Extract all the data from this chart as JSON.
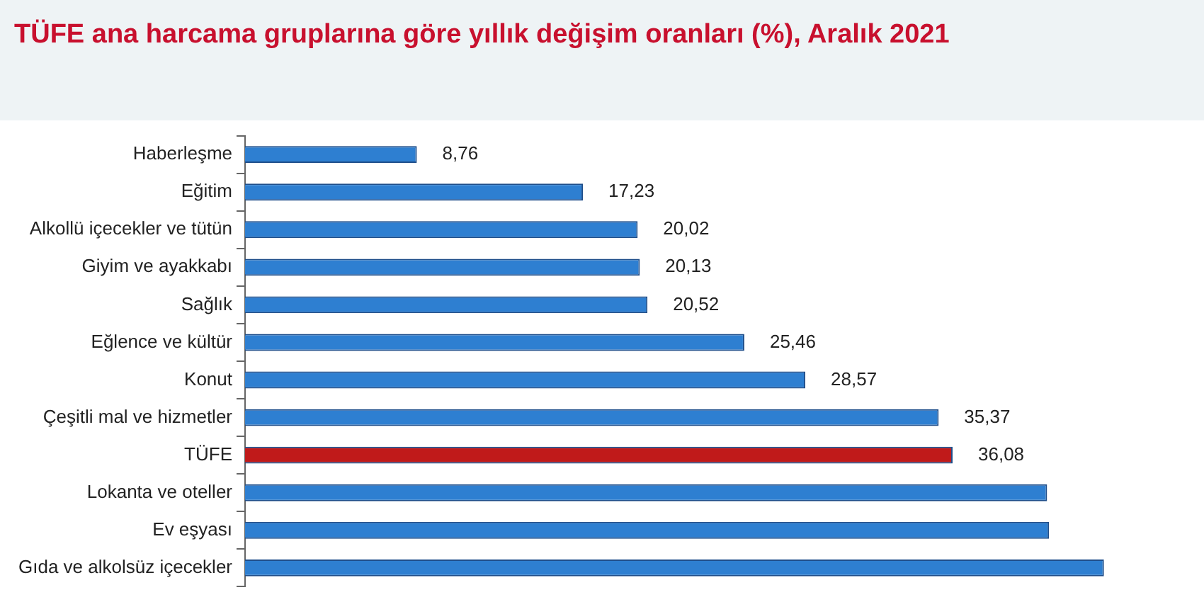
{
  "chart_data": {
    "type": "bar",
    "orientation": "horizontal",
    "title": "TÜFE ana harcama gruplarına göre yıllık değişim oranları (%), Aralık 2021",
    "categories": [
      "Haberleşme",
      "Eğitim",
      "Alkollü içecekler ve tütün",
      "Giyim ve ayakkabı",
      "Sağlık",
      "Eğlence ve kültür",
      "Konut",
      "Çeşitli mal ve hizmetler",
      "TÜFE",
      "Lokanta ve oteller",
      "Ev eşyası",
      "Gıda ve alkolsüz içecekler"
    ],
    "values": [
      8.76,
      17.23,
      20.02,
      20.13,
      20.52,
      25.46,
      28.57,
      35.37,
      36.08,
      40.9,
      41.0,
      43.8
    ],
    "colors": [
      "#2e7fd1",
      "#2e7fd1",
      "#2e7fd1",
      "#2e7fd1",
      "#2e7fd1",
      "#2e7fd1",
      "#2e7fd1",
      "#2e7fd1",
      "#c01a1a",
      "#2e7fd1",
      "#2e7fd1",
      "#2e7fd1"
    ],
    "value_labels": [
      "8,76",
      "17,23",
      "20,02",
      "20,13",
      "20,52",
      "25,46",
      "28,57",
      "35,37",
      "36,08",
      null,
      null,
      null
    ],
    "grid": false,
    "legend": false
  }
}
